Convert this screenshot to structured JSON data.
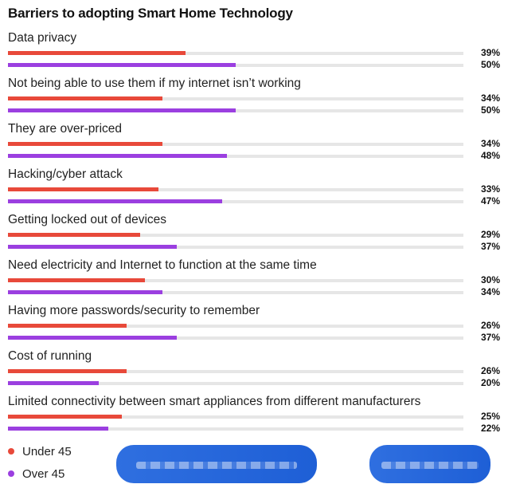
{
  "chart_data": {
    "type": "bar",
    "orientation": "horizontal",
    "title": "Barriers to adopting Smart Home Technology",
    "categories": [
      "Data privacy",
      "Not being able to use them if my internet isn’t working",
      "They are over-priced",
      "Hacking/cyber attack",
      "Getting locked out of devices",
      "Need electricity and Internet to function at the same time",
      "Having more passwords/security to remember",
      "Cost of running",
      "Limited connectivity between smart appliances from different manufacturers"
    ],
    "series": [
      {
        "name": "Under 45",
        "color": "#e8493a",
        "values": [
          39,
          34,
          34,
          33,
          29,
          30,
          26,
          26,
          25
        ]
      },
      {
        "name": "Over 45",
        "color": "#9b3fe0",
        "values": [
          50,
          50,
          48,
          47,
          37,
          34,
          37,
          20,
          22
        ]
      }
    ],
    "value_suffix": "%",
    "xlim": [
      0,
      100
    ]
  }
}
